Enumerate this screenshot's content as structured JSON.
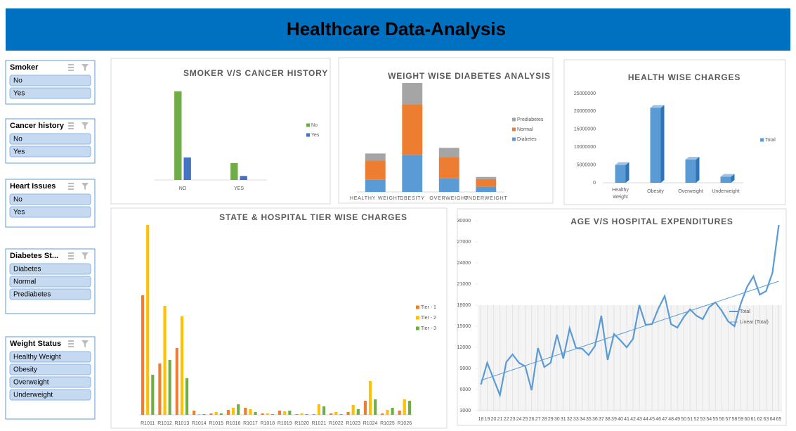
{
  "header": {
    "title": "Healthcare Data-Analysis"
  },
  "slicers": [
    {
      "title": "Smoker",
      "items": [
        "No",
        "Yes"
      ]
    },
    {
      "title": "Cancer history",
      "items": [
        "No",
        "Yes"
      ]
    },
    {
      "title": "Heart Issues",
      "items": [
        "No",
        "Yes"
      ]
    },
    {
      "title": "Diabetes St...",
      "items": [
        "Diabetes",
        "Normal",
        "Prediabetes"
      ]
    },
    {
      "title": "Weight Status",
      "items": [
        "Healthy Weight",
        "Obesity",
        "Overweight",
        "Underweight"
      ]
    }
  ],
  "chart_data": [
    {
      "type": "bar",
      "title": "SMOKER V/S CANCER HISTORY",
      "categories": [
        "NO",
        "YES"
      ],
      "series": [
        {
          "name": "No",
          "color": "#70ad47",
          "values": [
            110,
            21
          ]
        },
        {
          "name": "Yes",
          "color": "#4472c4",
          "values": [
            28,
            5
          ]
        }
      ],
      "legend": "right"
    },
    {
      "type": "bar",
      "stacked": true,
      "title": "WEIGHT WISE DIABETES ANALYSIS",
      "categories": [
        "HEALTHY WEIGHT",
        "OBESITY",
        "OVERWEIGHT",
        "UNDERWEIGHT"
      ],
      "series": [
        {
          "name": "Diabetes",
          "color": "#5b9bd5",
          "values": [
            17,
            52,
            19,
            7
          ]
        },
        {
          "name": "Normal",
          "color": "#ed7d31",
          "values": [
            27,
            71,
            30,
            11
          ]
        },
        {
          "name": "Prediabetes",
          "color": "#a5a5a5",
          "values": [
            10,
            30,
            13,
            3
          ]
        }
      ],
      "legend": "right"
    },
    {
      "type": "bar",
      "bar3d": true,
      "title": "HEALTH WISE CHARGES",
      "categories": [
        "Healthy Weight",
        "Obesity",
        "Overweight",
        "Underweight"
      ],
      "series": [
        {
          "name": "Total",
          "color": "#5b9bd5",
          "values": [
            5000000,
            21000000,
            6500000,
            1700000
          ]
        }
      ],
      "ylim": [
        0,
        25000000
      ],
      "yticks": [
        0,
        5000000,
        10000000,
        15000000,
        20000000,
        25000000
      ],
      "legend": "right"
    },
    {
      "type": "bar",
      "title": "STATE & HOSPITAL TIER WISE CHARGES",
      "categories": [
        "R1011",
        "R1012",
        "R1013",
        "R1014",
        "R1015",
        "R1016",
        "R1017",
        "R1018",
        "R1019",
        "R1020",
        "R1021",
        "R1022",
        "R1023",
        "R1024",
        "R1025",
        "R1026"
      ],
      "series": [
        {
          "name": "Tier - 1",
          "color": "#ed7d31",
          "values": [
            170,
            73,
            95,
            6,
            2,
            7,
            10,
            2,
            6,
            1,
            1,
            2,
            4,
            20,
            2,
            6
          ]
        },
        {
          "name": "Tier - 2",
          "color": "#ffc000",
          "values": [
            270,
            155,
            140,
            1,
            4,
            10,
            8,
            2,
            5,
            2,
            15,
            4,
            14,
            48,
            7,
            22
          ]
        },
        {
          "name": "Tier - 3",
          "color": "#70ad47",
          "values": [
            57,
            78,
            52,
            1,
            2,
            15,
            4,
            1,
            6,
            1,
            12,
            1,
            8,
            22,
            10,
            20
          ]
        }
      ],
      "legend": "right"
    },
    {
      "type": "line",
      "title": "AGE V/S HOSPITAL EXPENDITURES",
      "categories": [
        18,
        19,
        20,
        21,
        22,
        23,
        24,
        25,
        26,
        27,
        28,
        29,
        30,
        31,
        32,
        33,
        34,
        35,
        36,
        37,
        38,
        39,
        40,
        41,
        42,
        43,
        44,
        45,
        46,
        47,
        48,
        49,
        50,
        51,
        52,
        53,
        54,
        55,
        56,
        57,
        58,
        59,
        60,
        61,
        62,
        63,
        64,
        65
      ],
      "series": [
        {
          "name": "Total",
          "color": "#5b9bd5",
          "values": [
            6700,
            9800,
            7500,
            5200,
            9900,
            11000,
            9800,
            9300,
            5900,
            11900,
            9200,
            9800,
            13800,
            10400,
            14700,
            11900,
            11800,
            10900,
            12200,
            16500,
            10200,
            13900,
            13000,
            12000,
            13200,
            18000,
            15200,
            15300,
            17500,
            19300,
            15300,
            14800,
            16300,
            17400,
            16500,
            16000,
            17700,
            18400,
            17200,
            15700,
            15000,
            18200,
            20600,
            22100,
            19500,
            20000,
            22600,
            29400
          ]
        }
      ],
      "trendline": {
        "name": "Linear (Total)",
        "color": "#5b9bd5",
        "start": 7300,
        "end": 21400
      },
      "ylim": [
        3000,
        30000
      ],
      "yticks": [
        3000,
        6000,
        9000,
        12000,
        15000,
        18000,
        21000,
        24000,
        27000,
        30000
      ],
      "legend": "right"
    }
  ]
}
